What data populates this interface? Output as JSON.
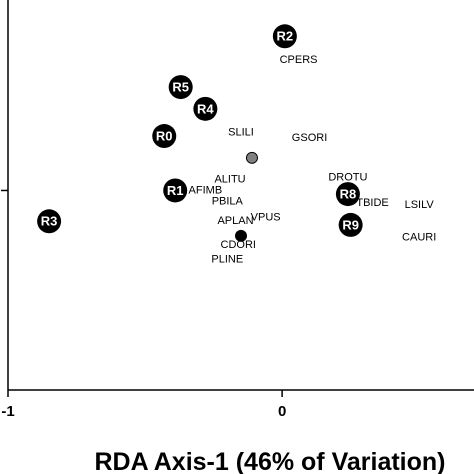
{
  "chart_data": {
    "type": "scatter",
    "title": "",
    "xlabel": "RDA Axis-1 (46% of Variation)",
    "ylabel": "",
    "x_ticks": [
      {
        "value": -1,
        "label": "-1"
      },
      {
        "value": 0,
        "label": "0"
      }
    ],
    "y_ticks": [
      0
    ],
    "xlim": [
      -1,
      0.7
    ],
    "ylim": [
      -1.1,
      1.05
    ],
    "grid": false,
    "colors": {
      "site_marker": "#000000",
      "site_text": "#ffffff",
      "centroid_grey": "#808080",
      "centroid_black": "#000000",
      "axis": "#000000"
    },
    "sites": [
      {
        "label": "R0",
        "x": -0.43,
        "y": 0.3
      },
      {
        "label": "R1",
        "x": -0.39,
        "y": 0.0
      },
      {
        "label": "R2",
        "x": 0.01,
        "y": 0.85
      },
      {
        "label": "R3",
        "x": -0.85,
        "y": -0.17
      },
      {
        "label": "R4",
        "x": -0.28,
        "y": 0.45
      },
      {
        "label": "R5",
        "x": -0.37,
        "y": 0.57
      },
      {
        "label": "R8",
        "x": 0.24,
        "y": -0.02
      },
      {
        "label": "R9",
        "x": 0.25,
        "y": -0.19
      }
    ],
    "centroids": [
      {
        "x": -0.11,
        "y": 0.18,
        "color": "grey"
      },
      {
        "x": -0.15,
        "y": -0.25,
        "color": "black"
      }
    ],
    "species": [
      {
        "label": "CPERS",
        "x": 0.06,
        "y": 0.72
      },
      {
        "label": "SLILI",
        "x": -0.15,
        "y": 0.32
      },
      {
        "label": "GSORI",
        "x": 0.1,
        "y": 0.29
      },
      {
        "label": "ALITU",
        "x": -0.19,
        "y": 0.06
      },
      {
        "label": "AFIMB",
        "x": -0.28,
        "y": 0.0
      },
      {
        "label": "PBILA",
        "x": -0.2,
        "y": -0.06
      },
      {
        "label": "DROTU",
        "x": 0.24,
        "y": 0.07
      },
      {
        "label": "TBIDE",
        "x": 0.33,
        "y": -0.07
      },
      {
        "label": "LSILV",
        "x": 0.5,
        "y": -0.08
      },
      {
        "label": "APLAN",
        "x": -0.17,
        "y": -0.17
      },
      {
        "label": "VPUS",
        "x": -0.06,
        "y": -0.15
      },
      {
        "label": "CAURI",
        "x": 0.5,
        "y": -0.26
      },
      {
        "label": "CDORI",
        "x": -0.16,
        "y": -0.3
      },
      {
        "label": "PLINE",
        "x": -0.2,
        "y": -0.38
      }
    ]
  }
}
